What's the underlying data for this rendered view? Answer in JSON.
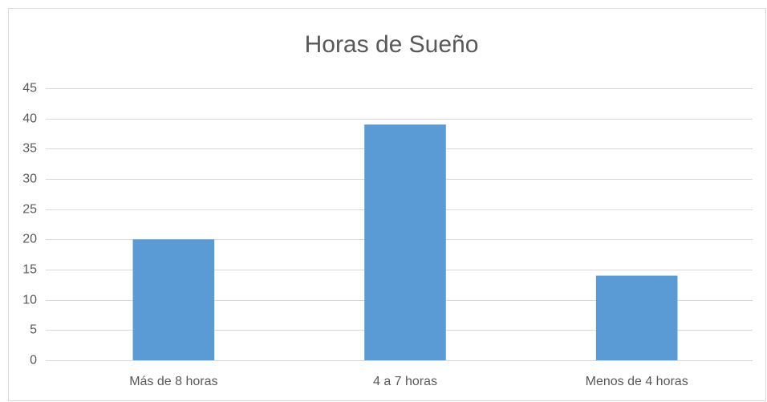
{
  "chart_data": {
    "type": "bar",
    "title": "Horas de Sueño",
    "categories": [
      "Más de 8 horas",
      "4 a 7 horas",
      "Menos de 4 horas"
    ],
    "values": [
      20,
      39,
      14
    ],
    "color": "#5b9bd5",
    "ylim": [
      0,
      45
    ],
    "yticks": [
      0,
      5,
      10,
      15,
      20,
      25,
      30,
      35,
      40,
      45
    ],
    "grid": true
  }
}
